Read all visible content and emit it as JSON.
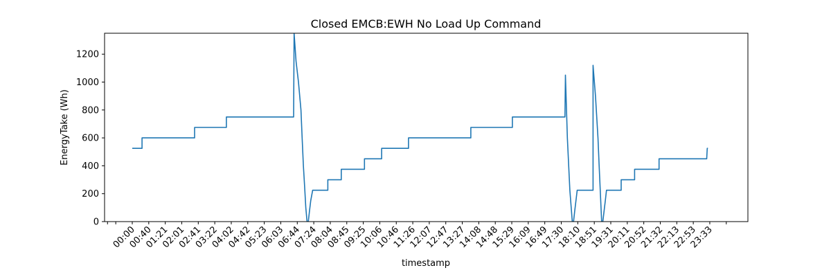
{
  "chart_data": {
    "type": "line",
    "title": "Closed EMCB:EWH No Load Up Command",
    "xlabel": "timestamp",
    "ylabel": "EnergyTake (Wh)",
    "ylim": [
      0,
      1350
    ],
    "yticks": [
      0,
      200,
      400,
      600,
      800,
      1000,
      1200
    ],
    "xticks": [
      "00:00",
      "00:40",
      "01:21",
      "02:01",
      "02:41",
      "03:22",
      "04:02",
      "04:42",
      "05:23",
      "06:03",
      "06:44",
      "07:24",
      "08:04",
      "08:45",
      "09:25",
      "10:06",
      "10:46",
      "11:26",
      "12:07",
      "12:47",
      "13:27",
      "14:08",
      "14:48",
      "15:29",
      "16:09",
      "16:49",
      "17:30",
      "18:10",
      "18:51",
      "19:31",
      "20:11",
      "20:52",
      "21:32",
      "22:13",
      "22:53",
      "23:33"
    ],
    "grid": false,
    "legend": "none",
    "color": "#1f77b4",
    "x_unit": "hours of day",
    "series": [
      {
        "x": [
          0.0,
          0.4,
          0.4,
          2.55,
          2.55,
          3.85,
          3.85,
          6.6,
          6.62,
          6.7,
          6.8,
          6.9,
          6.95,
          7.0,
          7.05,
          7.1,
          7.15,
          7.2,
          7.25,
          7.3,
          7.38,
          7.45,
          7.55,
          8.0,
          8.0,
          8.55,
          8.55,
          9.5,
          9.5,
          10.2,
          10.2,
          11.3,
          11.3,
          13.85,
          13.85,
          15.55,
          15.55,
          17.7,
          17.72,
          17.8,
          17.9,
          18.0,
          18.05,
          18.1,
          18.15,
          18.2,
          18.3,
          18.35,
          18.85,
          18.85,
          18.95,
          19.05,
          19.1,
          19.15,
          19.2,
          19.25,
          19.3,
          19.35,
          19.4,
          19.45,
          19.5,
          19.55,
          20.0,
          20.0,
          20.55,
          20.55,
          21.55,
          21.55,
          22.55,
          22.55,
          23.5,
          23.52,
          23.55
        ],
        "y": [
          525,
          525,
          600,
          600,
          675,
          675,
          750,
          750,
          1350,
          1150,
          1000,
          800,
          600,
          400,
          250,
          100,
          0,
          0,
          75,
          150,
          225,
          225,
          225,
          225,
          300,
          300,
          375,
          375,
          450,
          450,
          525,
          525,
          600,
          600,
          675,
          675,
          750,
          750,
          1050,
          600,
          225,
          0,
          0,
          75,
          150,
          225,
          225,
          225,
          225,
          1120,
          900,
          600,
          400,
          200,
          0,
          0,
          75,
          150,
          225,
          225,
          225,
          225,
          225,
          300,
          300,
          375,
          375,
          450,
          450,
          450,
          450,
          525,
          525
        ]
      }
    ]
  }
}
